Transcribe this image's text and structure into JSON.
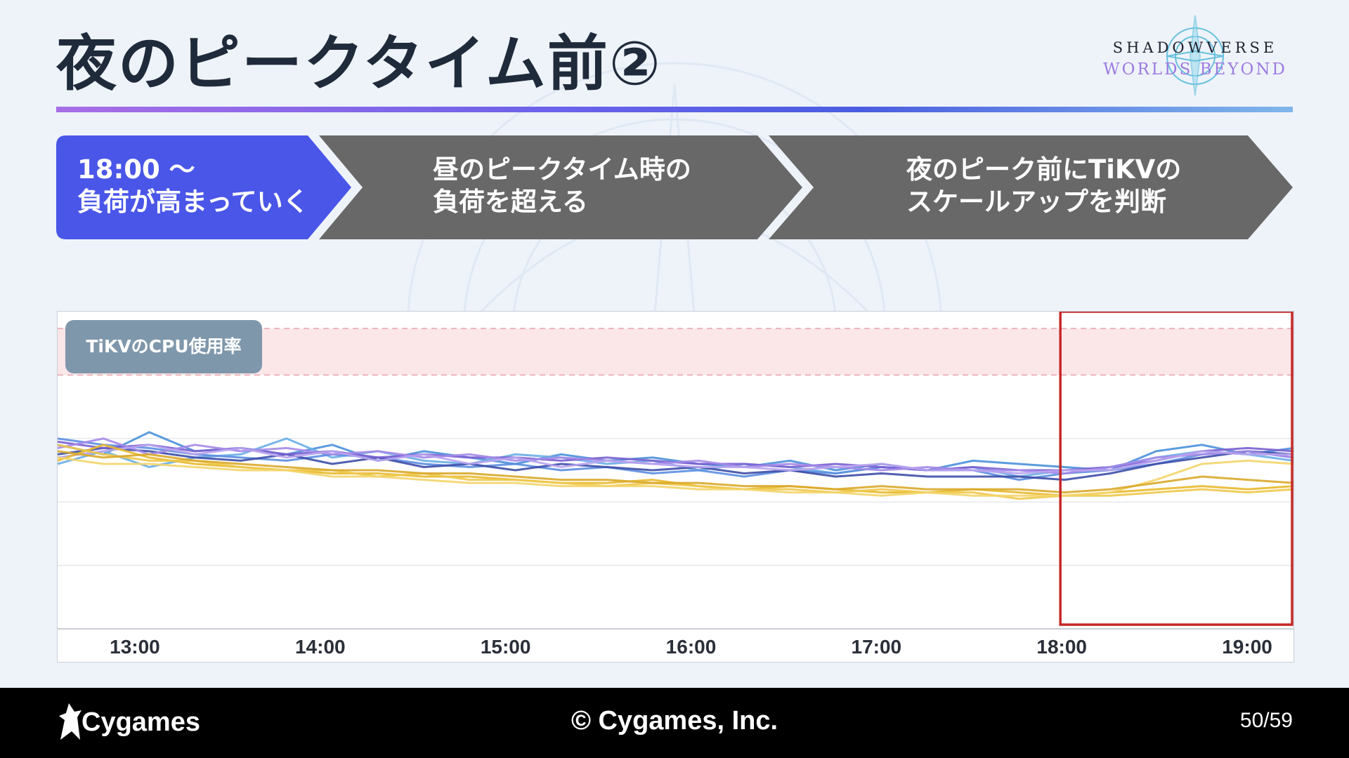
{
  "slide": {
    "title": "夜のピークタイム前②",
    "page": "50/59"
  },
  "logo": {
    "line1": "SHADOWVERSE",
    "line2": "WORLDS BEYOND"
  },
  "steps": [
    {
      "lines": [
        "18:00 ～",
        "負荷が高まっていく"
      ],
      "color": "#4a56e8",
      "active": true
    },
    {
      "lines": [
        "昼のピークタイム時の",
        "負荷を超える"
      ],
      "color": "#686868",
      "active": false
    },
    {
      "lines": [
        "夜のピーク前にTiKVの",
        "スケールアップを判断"
      ],
      "color": "#686868",
      "active": false
    }
  ],
  "chart_label": "TiKVのCPU使用率",
  "chart_data": {
    "type": "line",
    "title": "TiKVのCPU使用率",
    "xlabel": "",
    "ylabel": "",
    "x_ticks": [
      "13:00",
      "14:00",
      "15:00",
      "16:00",
      "17:00",
      "18:00",
      "19:00"
    ],
    "x_range": [
      "12:35",
      "19:15"
    ],
    "y_range": [
      0,
      100
    ],
    "y_grid": [
      20,
      40,
      60,
      80
    ],
    "threshold_band": [
      80,
      100
    ],
    "threshold_band_color": "#fbe6e8",
    "highlight": {
      "from": "18:00",
      "to": "19:15",
      "color": "#c62828"
    },
    "series": [
      {
        "color": "#4a90d9",
        "values": [
          58,
          55,
          62,
          56,
          57,
          55,
          58,
          53,
          56,
          54,
          52,
          55,
          53,
          54,
          52,
          51,
          53,
          50,
          52,
          50,
          53,
          52,
          51,
          50,
          56,
          58,
          55,
          57
        ]
      },
      {
        "color": "#6aaee6",
        "values": [
          52,
          56,
          51,
          54,
          55,
          60,
          54,
          56,
          53,
          52,
          55,
          54,
          52,
          53,
          50,
          52,
          51,
          49,
          51,
          50,
          51,
          48,
          50,
          51,
          54,
          56,
          55,
          53
        ]
      },
      {
        "color": "#5b8ee0",
        "values": [
          60,
          58,
          57,
          55,
          54,
          53,
          55,
          54,
          52,
          51,
          52,
          50,
          51,
          49,
          50,
          48,
          50,
          49,
          51,
          50,
          50,
          47,
          49,
          50,
          52,
          55,
          56,
          54
        ]
      },
      {
        "color": "#3d4ea8",
        "values": [
          55,
          57,
          56,
          54,
          53,
          55,
          52,
          54,
          51,
          52,
          50,
          52,
          51,
          50,
          51,
          49,
          50,
          48,
          49,
          48,
          48,
          48,
          47,
          49,
          52,
          54,
          56,
          55
        ]
      },
      {
        "color": "#7a5fd0",
        "values": [
          59,
          57,
          58,
          56,
          57,
          55,
          56,
          54,
          55,
          54,
          54,
          53,
          54,
          53,
          52,
          52,
          51,
          52,
          51,
          50,
          51,
          50,
          50,
          51,
          53,
          56,
          57,
          56
        ]
      },
      {
        "color": "#a58ae8",
        "values": [
          57,
          60,
          55,
          58,
          56,
          57,
          55,
          56,
          54,
          55,
          53,
          54,
          53,
          52,
          53,
          51,
          52,
          51,
          50,
          51,
          50,
          50,
          49,
          51,
          54,
          55,
          56,
          54
        ]
      },
      {
        "color": "#b9a3ee",
        "values": [
          54,
          56,
          58,
          55,
          57,
          54,
          56,
          53,
          55,
          52,
          54,
          51,
          53,
          52,
          51,
          51,
          50,
          51,
          52,
          50,
          50,
          49,
          50,
          50,
          53,
          56,
          55,
          55
        ]
      },
      {
        "color": "#e8b92c",
        "values": [
          53,
          58,
          54,
          52,
          51,
          50,
          49,
          49,
          48,
          48,
          47,
          46,
          46,
          47,
          45,
          44,
          45,
          44,
          43,
          43,
          44,
          43,
          42,
          43,
          44,
          45,
          44,
          45
        ]
      },
      {
        "color": "#f0c84a",
        "values": [
          58,
          55,
          53,
          53,
          51,
          50,
          50,
          48,
          49,
          47,
          47,
          46,
          45,
          46,
          45,
          44,
          44,
          43,
          44,
          43,
          43,
          41,
          42,
          42,
          43,
          44,
          43,
          44
        ]
      },
      {
        "color": "#f3d56b",
        "values": [
          54,
          52,
          52,
          51,
          50,
          50,
          48,
          48,
          47,
          46,
          46,
          45,
          45,
          45,
          44,
          44,
          43,
          43,
          42,
          43,
          42,
          42,
          42,
          43,
          47,
          52,
          53,
          52
        ]
      },
      {
        "color": "#d9a82a",
        "values": [
          56,
          54,
          55,
          53,
          52,
          51,
          50,
          50,
          49,
          49,
          48,
          47,
          47,
          46,
          46,
          45,
          45,
          44,
          45,
          44,
          44,
          44,
          43,
          44,
          46,
          48,
          47,
          46
        ]
      }
    ]
  },
  "footer": {
    "brand": "Cygames",
    "copyright": "© Cygames, Inc."
  },
  "colors": {
    "accent": "#4a56e8",
    "step_gray": "#686868",
    "background": "#eef3fa",
    "footer": "#000000"
  }
}
